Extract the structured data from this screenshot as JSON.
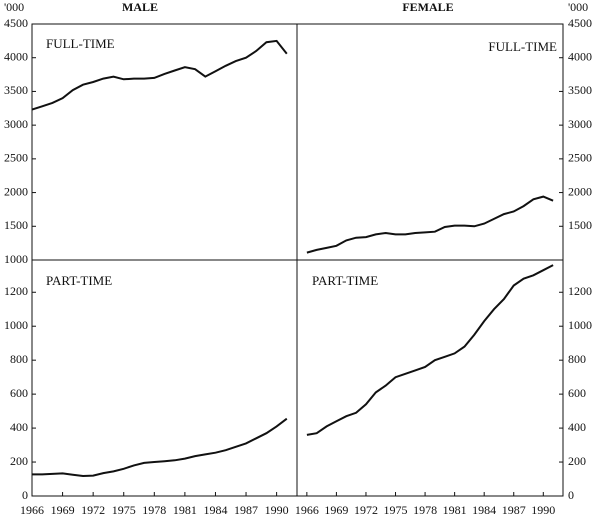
{
  "headers": [
    "MALE",
    "FEMALE"
  ],
  "y_units": [
    "'000",
    "'000"
  ],
  "chart_data": [
    {
      "type": "line",
      "title": "FULL-TIME",
      "color": "#111111",
      "x": [
        1966,
        1967,
        1968,
        1969,
        1970,
        1971,
        1972,
        1973,
        1974,
        1975,
        1976,
        1977,
        1978,
        1979,
        1980,
        1981,
        1982,
        1983,
        1984,
        1985,
        1986,
        1987,
        1988,
        1989,
        1990,
        1991
      ],
      "values": [
        3230,
        3280,
        3330,
        3400,
        3520,
        3600,
        3640,
        3690,
        3720,
        3680,
        3690,
        3690,
        3700,
        3760,
        3810,
        3860,
        3830,
        3720,
        3800,
        3880,
        3950,
        4000,
        4100,
        4230,
        4250,
        4060
      ],
      "xlim": [
        1966,
        1992
      ],
      "ylim": [
        1000,
        4500
      ],
      "yticks": [
        1000,
        1500,
        2000,
        2500,
        3000,
        3500,
        4000,
        4500
      ]
    },
    {
      "type": "line",
      "title": "FULL-TIME",
      "color": "#111111",
      "x": [
        1966,
        1967,
        1968,
        1969,
        1970,
        1971,
        1972,
        1973,
        1974,
        1975,
        1976,
        1977,
        1978,
        1979,
        1980,
        1981,
        1982,
        1983,
        1984,
        1985,
        1986,
        1987,
        1988,
        1989,
        1990,
        1991
      ],
      "values": [
        1110,
        1150,
        1180,
        1210,
        1290,
        1330,
        1340,
        1380,
        1400,
        1380,
        1380,
        1400,
        1410,
        1420,
        1490,
        1510,
        1510,
        1500,
        1540,
        1610,
        1680,
        1720,
        1800,
        1900,
        1940,
        1880
      ],
      "xlim": [
        1965,
        1992
      ],
      "ylim": [
        1000,
        4500
      ],
      "yticks": [
        1500,
        2000,
        2500,
        3000,
        3500,
        4000,
        4500
      ]
    },
    {
      "type": "line",
      "title": "PART-TIME",
      "color": "#111111",
      "x": [
        1966,
        1967,
        1968,
        1969,
        1970,
        1971,
        1972,
        1973,
        1974,
        1975,
        1976,
        1977,
        1978,
        1979,
        1980,
        1981,
        1982,
        1983,
        1984,
        1985,
        1986,
        1987,
        1988,
        1989,
        1990,
        1991
      ],
      "values": [
        127,
        127,
        130,
        133,
        125,
        118,
        120,
        135,
        145,
        160,
        180,
        195,
        200,
        205,
        210,
        220,
        235,
        245,
        255,
        270,
        290,
        310,
        340,
        370,
        410,
        455
      ],
      "xlim": [
        1966,
        1992
      ],
      "ylim": [
        0,
        1390
      ],
      "yticks": [
        0,
        200,
        400,
        600,
        800,
        1000,
        1200
      ],
      "xticks": [
        1966,
        1969,
        1972,
        1975,
        1978,
        1981,
        1984,
        1987,
        1990
      ]
    },
    {
      "type": "line",
      "title": "PART-TIME",
      "color": "#111111",
      "x": [
        1966,
        1967,
        1968,
        1969,
        1970,
        1971,
        1972,
        1973,
        1974,
        1975,
        1976,
        1977,
        1978,
        1979,
        1980,
        1981,
        1982,
        1983,
        1984,
        1985,
        1986,
        1987,
        1988,
        1989,
        1990,
        1991
      ],
      "values": [
        360,
        370,
        410,
        440,
        470,
        490,
        540,
        610,
        650,
        700,
        720,
        740,
        760,
        800,
        820,
        840,
        880,
        950,
        1030,
        1100,
        1160,
        1240,
        1280,
        1300,
        1330,
        1360
      ],
      "xlim": [
        1965,
        1992
      ],
      "ylim": [
        0,
        1390
      ],
      "yticks": [
        0,
        200,
        400,
        600,
        800,
        1000,
        1200
      ],
      "xticks": [
        1966,
        1969,
        1972,
        1975,
        1978,
        1981,
        1984,
        1987,
        1990
      ]
    }
  ]
}
